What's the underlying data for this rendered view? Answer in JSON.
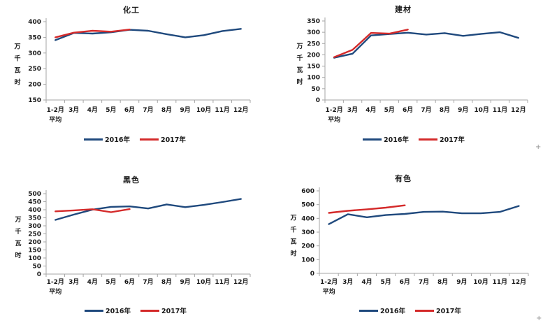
{
  "colors": {
    "series_2016": "#1F497D",
    "series_2017": "#D42A2A",
    "axis": "#A6A6A6",
    "text": "#1a1a1a"
  },
  "artifacts": {
    "plus": "+"
  },
  "chart_data": [
    {
      "type": "line",
      "title": "化工",
      "ylabel": "万千瓦时",
      "categories": [
        "1-2月\n平均",
        "3月",
        "4月",
        "5月",
        "6月",
        "7月",
        "8月",
        "9月",
        "10月",
        "11月",
        "12月"
      ],
      "ylim": [
        150,
        400
      ],
      "ytick_step": 50,
      "grid": false,
      "legend_position": "bottom",
      "series": [
        {
          "name": "2016年",
          "color": "#1F497D",
          "values": [
            341,
            364,
            362,
            366,
            374,
            371,
            360,
            350,
            357,
            370,
            377
          ]
        },
        {
          "name": "2017年",
          "color": "#D42A2A",
          "values": [
            350,
            365,
            371,
            368,
            375
          ]
        }
      ]
    },
    {
      "type": "line",
      "title": "建材",
      "ylabel": "万千瓦时",
      "categories": [
        "1-2月\n平均",
        "3月",
        "4月",
        "5月",
        "6月",
        "7月",
        "8月",
        "9月",
        "10月",
        "11月",
        "12月"
      ],
      "ylim": [
        0,
        350
      ],
      "ytick_step": 50,
      "grid": false,
      "legend_position": "bottom",
      "series": [
        {
          "name": "2016年",
          "color": "#1F497D",
          "values": [
            187,
            205,
            286,
            292,
            298,
            290,
            296,
            284,
            293,
            300,
            275
          ]
        },
        {
          "name": "2017年",
          "color": "#D42A2A",
          "values": [
            190,
            222,
            297,
            294,
            312
          ]
        }
      ]
    },
    {
      "type": "line",
      "title": "黑色",
      "ylabel": "万千瓦时",
      "categories": [
        "1-2月\n平均",
        "3月",
        "4月",
        "5月",
        "6月",
        "7月",
        "8月",
        "9月",
        "10月",
        "11月",
        "12月"
      ],
      "ylim": [
        0,
        500
      ],
      "ytick_step": 50,
      "grid": false,
      "legend_position": "bottom",
      "series": [
        {
          "name": "2016年",
          "color": "#1F497D",
          "values": [
            337,
            370,
            401,
            418,
            421,
            408,
            433,
            416,
            430,
            448,
            467
          ]
        },
        {
          "name": "2017年",
          "color": "#D42A2A",
          "values": [
            390,
            396,
            403,
            385,
            404
          ]
        }
      ]
    },
    {
      "type": "line",
      "title": "有色",
      "ylabel": "万千瓦时",
      "categories": [
        "1-2月\n平均",
        "3月",
        "4月",
        "5月",
        "6月",
        "7月",
        "8月",
        "9月",
        "10月",
        "11月",
        "12月"
      ],
      "ylim": [
        0,
        600
      ],
      "ytick_step": 100,
      "grid": false,
      "legend_position": "bottom",
      "series": [
        {
          "name": "2016年",
          "color": "#1F497D",
          "values": [
            358,
            430,
            408,
            424,
            432,
            447,
            449,
            437,
            437,
            447,
            490
          ]
        },
        {
          "name": "2017年",
          "color": "#D42A2A",
          "values": [
            440,
            455,
            466,
            478,
            495
          ]
        }
      ]
    }
  ]
}
